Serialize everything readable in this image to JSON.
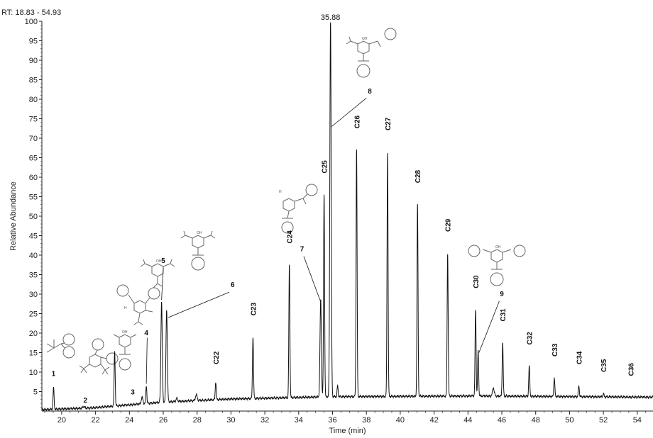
{
  "header": {
    "rt_range": "RT: 18.83 - 54.93"
  },
  "chart_data": {
    "type": "line",
    "xlabel": "Time (min)",
    "ylabel": "Relative Abundance",
    "xlim": [
      18.83,
      54.93
    ],
    "ylim": [
      0,
      100
    ],
    "xticks": [
      20,
      22,
      24,
      26,
      28,
      30,
      32,
      34,
      36,
      38,
      40,
      42,
      44,
      46,
      48,
      50,
      52,
      54
    ],
    "yticks": [
      5,
      10,
      15,
      20,
      25,
      30,
      35,
      40,
      45,
      50,
      55,
      60,
      65,
      70,
      75,
      80,
      85,
      90,
      95,
      100
    ],
    "apex_label": {
      "text": "35.88",
      "x": 35.88
    },
    "peaks": [
      {
        "x": 19.52,
        "y": 6,
        "w": 0.03
      },
      {
        "x": 21.3,
        "y": 1.2,
        "w": 0.05
      },
      {
        "x": 23.13,
        "y": 15.5,
        "w": 0.03
      },
      {
        "x": 24.75,
        "y": 3.5,
        "w": 0.05
      },
      {
        "x": 25.0,
        "y": 6.5,
        "w": 0.03
      },
      {
        "x": 25.9,
        "y": 28,
        "w": 0.04
      },
      {
        "x": 26.2,
        "y": 26,
        "w": 0.04
      },
      {
        "x": 26.8,
        "y": 3.2,
        "w": 0.05
      },
      {
        "x": 27.95,
        "y": 4.2,
        "w": 0.05
      },
      {
        "x": 29.1,
        "y": 7.5,
        "w": 0.03
      },
      {
        "x": 31.3,
        "y": 19,
        "w": 0.03
      },
      {
        "x": 33.45,
        "y": 37.5,
        "w": 0.03
      },
      {
        "x": 35.3,
        "y": 28.5,
        "w": 0.04
      },
      {
        "x": 35.5,
        "y": 55.5,
        "w": 0.03
      },
      {
        "x": 35.88,
        "y": 100,
        "w": 0.04
      },
      {
        "x": 36.3,
        "y": 6.5,
        "w": 0.03
      },
      {
        "x": 37.42,
        "y": 67,
        "w": 0.03
      },
      {
        "x": 39.25,
        "y": 66.5,
        "w": 0.03
      },
      {
        "x": 41.02,
        "y": 53,
        "w": 0.03
      },
      {
        "x": 42.8,
        "y": 40.5,
        "w": 0.03
      },
      {
        "x": 44.45,
        "y": 26,
        "w": 0.03
      },
      {
        "x": 44.6,
        "y": 15.5,
        "w": 0.03
      },
      {
        "x": 45.5,
        "y": 6,
        "w": 0.05
      },
      {
        "x": 46.05,
        "y": 17.5,
        "w": 0.03
      },
      {
        "x": 47.62,
        "y": 11.5,
        "w": 0.03
      },
      {
        "x": 49.1,
        "y": 8.5,
        "w": 0.03
      },
      {
        "x": 50.55,
        "y": 6.5,
        "w": 0.03
      },
      {
        "x": 52.0,
        "y": 4.5,
        "w": 0.03
      },
      {
        "x": 53.6,
        "y": 3.5,
        "w": 0.04
      }
    ],
    "labels": [
      {
        "text": "1",
        "x": 19.52,
        "y": 9,
        "rot": 0
      },
      {
        "text": "2",
        "x": 21.4,
        "y": 2.2,
        "rot": 0
      },
      {
        "text": "3",
        "x": 24.2,
        "y": 4.3,
        "rot": 0
      },
      {
        "text": "4",
        "x": 25.0,
        "y": 19.5,
        "rot": 0
      },
      {
        "text": "5",
        "x": 26.0,
        "y": 38,
        "rot": 0
      },
      {
        "text": "6",
        "x": 30.1,
        "y": 31.8,
        "rot": 0
      },
      {
        "text": "7",
        "x": 34.2,
        "y": 41,
        "rot": 0
      },
      {
        "text": "8",
        "x": 38.2,
        "y": 81.5,
        "rot": 0
      },
      {
        "text": "9",
        "x": 46.0,
        "y": 29.5,
        "rot": 0
      },
      {
        "text": "C22",
        "x": 29.1,
        "y": 12,
        "rot": -90
      },
      {
        "text": "C23",
        "x": 31.3,
        "y": 24.5,
        "rot": -90
      },
      {
        "text": "C24",
        "x": 33.45,
        "y": 43,
        "rot": -90
      },
      {
        "text": "C25",
        "x": 35.5,
        "y": 61,
        "rot": -90
      },
      {
        "text": "C26",
        "x": 37.42,
        "y": 72.5,
        "rot": -90
      },
      {
        "text": "C27",
        "x": 39.25,
        "y": 72,
        "rot": -90
      },
      {
        "text": "C28",
        "x": 41.02,
        "y": 58.5,
        "rot": -90
      },
      {
        "text": "C29",
        "x": 42.8,
        "y": 46,
        "rot": -90
      },
      {
        "text": "C30",
        "x": 44.45,
        "y": 31.5,
        "rot": -90
      },
      {
        "text": "C31",
        "x": 46.05,
        "y": 23,
        "rot": -90
      },
      {
        "text": "C32",
        "x": 47.62,
        "y": 17,
        "rot": -90
      },
      {
        "text": "C33",
        "x": 49.1,
        "y": 14,
        "rot": -90
      },
      {
        "text": "C34",
        "x": 50.55,
        "y": 12,
        "rot": -90
      },
      {
        "text": "C35",
        "x": 52.0,
        "y": 10,
        "rot": -90
      },
      {
        "text": "C36",
        "x": 53.6,
        "y": 9,
        "rot": -90
      }
    ],
    "leaders": [
      {
        "x1": 25.05,
        "y1": 18.8,
        "x2": 25.0,
        "y2": 7
      },
      {
        "x1": 26.0,
        "y1": 36.8,
        "x2": 25.9,
        "y2": 28.5
      },
      {
        "x1": 29.9,
        "y1": 30.5,
        "x2": 26.3,
        "y2": 24
      },
      {
        "x1": 34.3,
        "y1": 39.7,
        "x2": 35.3,
        "y2": 28
      },
      {
        "x1": 38.0,
        "y1": 80.3,
        "x2": 35.95,
        "y2": 73
      },
      {
        "x1": 45.85,
        "y1": 28.2,
        "x2": 44.65,
        "y2": 15
      }
    ]
  }
}
